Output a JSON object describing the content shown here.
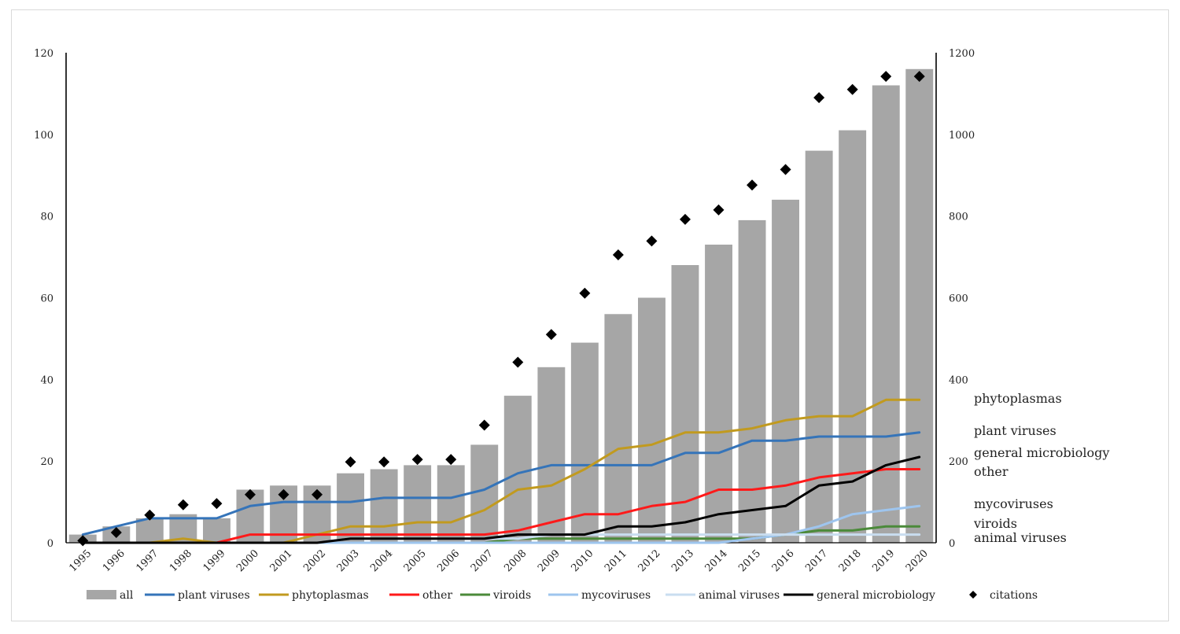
{
  "chart_data": {
    "type": "bar",
    "categories": [
      "1995",
      "1996",
      "1997",
      "1998",
      "1999",
      "2000",
      "2001",
      "2002",
      "2003",
      "2004",
      "2005",
      "2006",
      "2007",
      "2008",
      "2009",
      "2010",
      "2011",
      "2012",
      "2013",
      "2014",
      "2015",
      "2016",
      "2017",
      "2018",
      "2019",
      "2020"
    ],
    "left_axis": {
      "ylim": [
        0,
        120
      ],
      "ticks": [
        "0",
        "20",
        "40",
        "60",
        "80",
        "100",
        "120"
      ]
    },
    "right_axis": {
      "ylim": [
        0,
        1200
      ],
      "ticks": [
        "0",
        "200",
        "400",
        "600",
        "800",
        "1000",
        "1200"
      ]
    },
    "bars": {
      "name": "all",
      "color": "#a6a6a6",
      "values": [
        2,
        4,
        6,
        7,
        6,
        13,
        14,
        14,
        17,
        18,
        19,
        19,
        24,
        36,
        43,
        49,
        56,
        60,
        68,
        73,
        79,
        84,
        96,
        101,
        112,
        116
      ]
    },
    "series": [
      {
        "name": "plant viruses",
        "color": "#3574b9",
        "values": [
          2,
          4,
          6,
          6,
          6,
          9,
          10,
          10,
          10,
          11,
          11,
          11,
          13,
          17,
          19,
          19,
          19,
          19,
          22,
          22,
          25,
          25,
          26,
          26,
          26,
          27
        ]
      },
      {
        "name": "phytoplasmas",
        "color": "#c19a1f",
        "values": [
          0,
          0,
          0,
          1,
          0,
          0,
          0,
          2,
          4,
          4,
          5,
          5,
          8,
          13,
          14,
          18,
          23,
          24,
          27,
          27,
          28,
          30,
          31,
          31,
          35,
          35
        ]
      },
      {
        "name": "other",
        "color": "#ff1a1a",
        "values": [
          0,
          0,
          0,
          0,
          0,
          2,
          2,
          2,
          2,
          2,
          2,
          2,
          2,
          3,
          5,
          7,
          7,
          9,
          10,
          13,
          13,
          14,
          16,
          17,
          18,
          18
        ]
      },
      {
        "name": "viroids",
        "color": "#4b8a3a",
        "values": [
          0,
          0,
          0,
          0,
          0,
          0,
          0,
          0,
          0,
          0,
          0,
          0,
          0,
          1,
          1,
          1,
          1,
          1,
          1,
          1,
          1,
          2,
          3,
          3,
          4,
          4
        ]
      },
      {
        "name": "mycoviruses",
        "color": "#9ec5ee",
        "values": [
          0,
          0,
          0,
          0,
          0,
          0,
          0,
          0,
          0,
          0,
          0,
          0,
          0,
          0,
          0,
          0,
          0,
          0,
          0,
          0,
          1,
          2,
          4,
          7,
          8,
          9
        ]
      },
      {
        "name": "animal viruses",
        "color": "#c9ddf0",
        "values": [
          0,
          0,
          0,
          0,
          0,
          0,
          0,
          0,
          1,
          1,
          1,
          1,
          1,
          1,
          2,
          2,
          2,
          2,
          2,
          2,
          2,
          2,
          2,
          2,
          2,
          2
        ]
      },
      {
        "name": "general microbiology",
        "color": "#000000",
        "values": [
          0,
          0,
          0,
          0,
          0,
          0,
          0,
          0,
          1,
          1,
          1,
          1,
          1,
          2,
          2,
          2,
          4,
          4,
          5,
          7,
          8,
          9,
          14,
          15,
          19,
          21
        ]
      }
    ],
    "citations": {
      "name": "citations",
      "axis": "right",
      "color": "#000000",
      "values": [
        5,
        25,
        68,
        93,
        96,
        118,
        118,
        118,
        198,
        198,
        204,
        204,
        288,
        442,
        510,
        611,
        705,
        739,
        792,
        815,
        876,
        914,
        1090,
        1110,
        1142,
        1142
      ]
    },
    "end_labels": [
      "phytoplasmas",
      "plant viruses",
      "general microbiology",
      "other",
      "mycoviruses",
      "viroids",
      "animal viruses"
    ],
    "legend": [
      "all",
      "plant viruses",
      "phytoplasmas",
      "other",
      "viroids",
      "mycoviruses",
      "animal viruses",
      "general microbiology",
      "citations"
    ]
  }
}
